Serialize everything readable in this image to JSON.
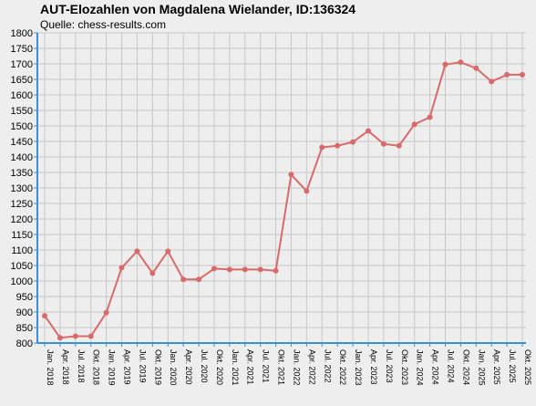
{
  "header": {
    "title": "AUT-Elozahlen von Magdalena Wielander, ID:136324",
    "source": "Quelle: chess-results.com"
  },
  "colors": {
    "line": "#d96a6a",
    "background": "#eeeeee",
    "grid": "#c8c8c8",
    "axis": "#3a8fd9"
  },
  "chart_data": {
    "type": "line",
    "title": "AUT-Elozahlen von Magdalena Wielander, ID:136324",
    "subtitle": "Quelle: chess-results.com",
    "xlabel": "",
    "ylabel": "",
    "ylim": [
      800,
      1800
    ],
    "ytick_step": 50,
    "grid": true,
    "categories": [
      "Jan. 2018",
      "Apr. 2018",
      "Jul. 2018",
      "Okt. 2018",
      "Jan. 2019",
      "Apr. 2019",
      "Jul. 2019",
      "Okt. 2019",
      "Jan. 2020",
      "Apr. 2020",
      "Jul. 2020",
      "Okt. 2020",
      "Jan. 2021",
      "Apr. 2021",
      "Jul. 2021",
      "Okt. 2021",
      "Jan. 2022",
      "Apr. 2022",
      "Jul. 2022",
      "Okt. 2022",
      "Jan. 2023",
      "Apr. 2023",
      "Jul. 2023",
      "Okt. 2023",
      "Jan. 2024",
      "Apr. 2024",
      "Jul. 2024",
      "Okt. 2024",
      "Jan. 2025",
      "Apr. 2025",
      "Jul. 2025",
      "Okt. 2025"
    ],
    "series": [
      {
        "values": [
          888,
          817,
          822,
          822,
          898,
          1043,
          1096,
          1025,
          1096,
          1005,
          1005,
          1040,
          1037,
          1037,
          1037,
          1033,
          1343,
          1290,
          1431,
          1436,
          1448,
          1484,
          1442,
          1436,
          1505,
          1528,
          1698,
          1705,
          1686,
          1643,
          1665,
          1665
        ]
      }
    ]
  }
}
